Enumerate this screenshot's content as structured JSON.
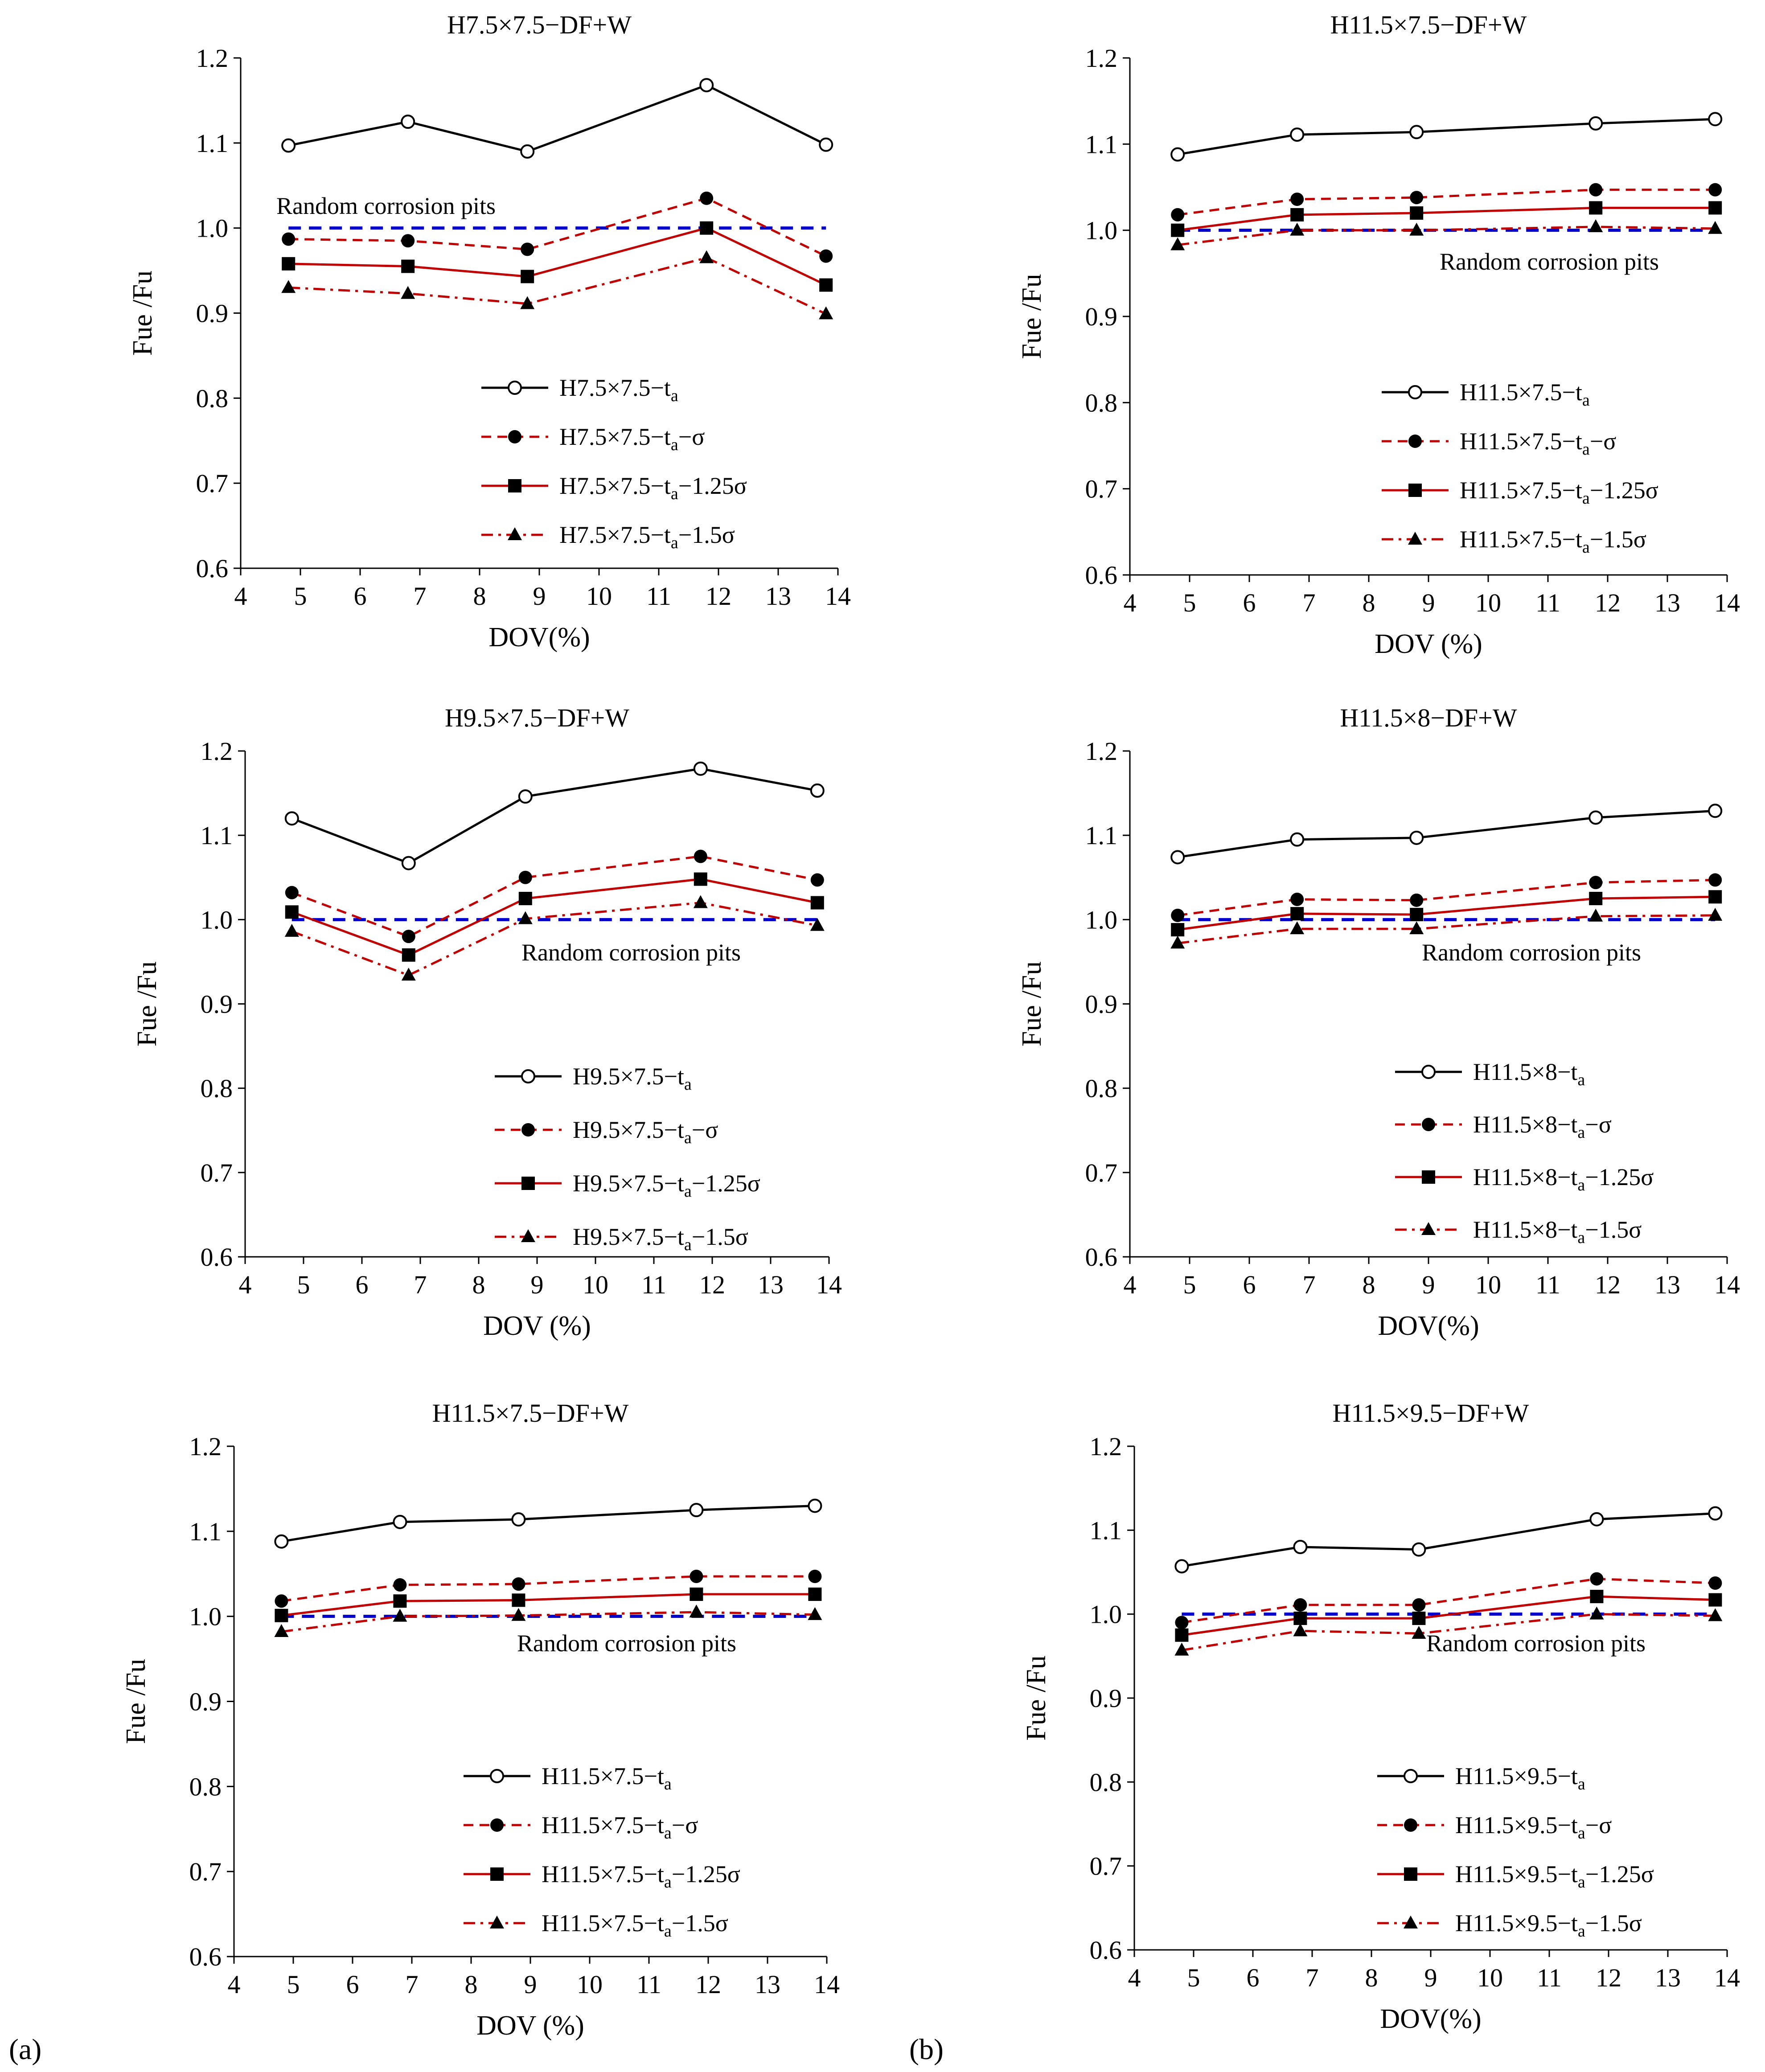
{
  "figure_labels": {
    "a": "(a)",
    "b": "(b)"
  },
  "colors": {
    "black": "#000000",
    "red": "#C00000",
    "blue": "#0000CC"
  },
  "chart_data": [
    {
      "id": "a1",
      "type": "line",
      "title": "H7.5×7.5−DF+W",
      "xlabel": "DOV(%)",
      "ylabel": "Fue /Fu",
      "xlim": [
        4,
        14
      ],
      "ylim": [
        0.6,
        1.2
      ],
      "xticks": [
        "4",
        "5",
        "6",
        "7",
        "8",
        "9",
        "10",
        "11",
        "12",
        "13",
        "14"
      ],
      "yticks": [
        "0.6",
        "0.7",
        "0.8",
        "0.9",
        "1.0",
        "1.1",
        "1.2"
      ],
      "x": [
        4.8,
        6.8,
        8.8,
        11.8,
        13.8
      ],
      "series": [
        {
          "name": "H7.5×7.5−t",
          "sub": "a",
          "suffix": "",
          "style": "solid-black-open-circle",
          "values": [
            1.097,
            1.125,
            1.09,
            1.168,
            1.098
          ]
        },
        {
          "name": "H7.5×7.5−t",
          "sub": "a",
          "suffix": "−σ",
          "style": "dashed-red-filled-circle",
          "values": [
            0.987,
            0.985,
            0.975,
            1.035,
            0.967
          ]
        },
        {
          "name": "H7.5×7.5−t",
          "sub": "a",
          "suffix": "−1.25σ",
          "style": "solid-red-square",
          "values": [
            0.958,
            0.955,
            0.943,
            1.0,
            0.933
          ]
        },
        {
          "name": "H7.5×7.5−t",
          "sub": "a",
          "suffix": "−1.5σ",
          "style": "dashdot-red-triangle",
          "values": [
            0.93,
            0.923,
            0.911,
            0.965,
            0.899
          ]
        }
      ],
      "reference_line": {
        "label": "Random corrosion pits",
        "value": 1.0
      }
    },
    {
      "id": "b1",
      "type": "line",
      "title": "H11.5×7.5−DF+W",
      "xlabel": "DOV (%)",
      "ylabel": "Fue /Fu",
      "xlim": [
        4,
        14
      ],
      "ylim": [
        0.6,
        1.2
      ],
      "xticks": [
        "4",
        "5",
        "6",
        "7",
        "8",
        "9",
        "10",
        "11",
        "12",
        "13",
        "14"
      ],
      "yticks": [
        "0.6",
        "0.7",
        "0.8",
        "0.9",
        "1.0",
        "1.1",
        "1.2"
      ],
      "x": [
        4.8,
        6.8,
        8.8,
        11.8,
        13.8
      ],
      "series": [
        {
          "name": "H11.5×7.5−t",
          "sub": "a",
          "suffix": "",
          "style": "solid-black-open-circle",
          "values": [
            1.088,
            1.111,
            1.114,
            1.124,
            1.129
          ]
        },
        {
          "name": "H11.5×7.5−t",
          "sub": "a",
          "suffix": "−σ",
          "style": "dashed-red-filled-circle",
          "values": [
            1.018,
            1.036,
            1.038,
            1.047,
            1.047
          ]
        },
        {
          "name": "H11.5×7.5−t",
          "sub": "a",
          "suffix": "−1.25σ",
          "style": "solid-red-square",
          "values": [
            1.0,
            1.018,
            1.02,
            1.026,
            1.026
          ]
        },
        {
          "name": "H11.5×7.5−t",
          "sub": "a",
          "suffix": "−1.5σ",
          "style": "dashdot-red-triangle",
          "values": [
            0.983,
            1.0,
            1.0,
            1.004,
            1.002
          ]
        }
      ],
      "reference_line": {
        "label": "Random corrosion pits",
        "value": 1.0
      }
    },
    {
      "id": "a2",
      "type": "line",
      "title": "H9.5×7.5−DF+W",
      "xlabel": "DOV (%)",
      "ylabel": "Fue /Fu",
      "xlim": [
        4,
        14
      ],
      "ylim": [
        0.6,
        1.2
      ],
      "xticks": [
        "4",
        "5",
        "6",
        "7",
        "8",
        "9",
        "10",
        "11",
        "12",
        "13",
        "14"
      ],
      "yticks": [
        "0.6",
        "0.7",
        "0.8",
        "0.9",
        "1.0",
        "1.1",
        "1.2"
      ],
      "x": [
        4.8,
        6.8,
        8.8,
        11.8,
        13.8
      ],
      "series": [
        {
          "name": "H9.5×7.5−t",
          "sub": "a",
          "suffix": "",
          "style": "solid-black-open-circle",
          "values": [
            1.12,
            1.067,
            1.146,
            1.179,
            1.153
          ]
        },
        {
          "name": "H9.5×7.5−t",
          "sub": "a",
          "suffix": "−σ",
          "style": "dashed-red-filled-circle",
          "values": [
            1.032,
            0.98,
            1.05,
            1.075,
            1.047
          ]
        },
        {
          "name": "H9.5×7.5−t",
          "sub": "a",
          "suffix": "−1.25σ",
          "style": "solid-red-square",
          "values": [
            1.009,
            0.958,
            1.025,
            1.048,
            1.02
          ]
        },
        {
          "name": "H9.5×7.5−t",
          "sub": "a",
          "suffix": "−1.5σ",
          "style": "dashdot-red-triangle",
          "values": [
            0.986,
            0.934,
            1.001,
            1.02,
            0.993
          ]
        }
      ],
      "reference_line": {
        "label": "Random corrosion pits",
        "value": 1.0
      }
    },
    {
      "id": "b2",
      "type": "line",
      "title": "H11.5×8−DF+W",
      "xlabel": "DOV(%)",
      "ylabel": "Fue /Fu",
      "xlim": [
        4,
        14
      ],
      "ylim": [
        0.6,
        1.2
      ],
      "xticks": [
        "4",
        "5",
        "6",
        "7",
        "8",
        "9",
        "10",
        "11",
        "12",
        "13",
        "14"
      ],
      "yticks": [
        "0.6",
        "0.7",
        "0.8",
        "0.9",
        "1.0",
        "1.1",
        "1.2"
      ],
      "x": [
        4.8,
        6.8,
        8.8,
        11.8,
        13.8
      ],
      "series": [
        {
          "name": "H11.5×8−t",
          "sub": "a",
          "suffix": "",
          "style": "solid-black-open-circle",
          "values": [
            1.074,
            1.095,
            1.097,
            1.121,
            1.129
          ]
        },
        {
          "name": "H11.5×8−t",
          "sub": "a",
          "suffix": "−σ",
          "style": "dashed-red-filled-circle",
          "values": [
            1.005,
            1.024,
            1.023,
            1.044,
            1.047
          ]
        },
        {
          "name": "H11.5×8−t",
          "sub": "a",
          "suffix": "−1.25σ",
          "style": "solid-red-square",
          "values": [
            0.988,
            1.007,
            1.006,
            1.025,
            1.027
          ]
        },
        {
          "name": "H11.5×8−t",
          "sub": "a",
          "suffix": "−1.5σ",
          "style": "dashdot-red-triangle",
          "values": [
            0.972,
            0.989,
            0.989,
            1.004,
            1.005
          ]
        }
      ],
      "reference_line": {
        "label": "Random corrosion pits",
        "value": 1.0
      }
    },
    {
      "id": "a3",
      "type": "line",
      "title": "H11.5×7.5−DF+W",
      "xlabel": "DOV (%)",
      "ylabel": "Fue /Fu",
      "xlim": [
        4,
        14
      ],
      "ylim": [
        0.6,
        1.2
      ],
      "xticks": [
        "4",
        "5",
        "6",
        "7",
        "8",
        "9",
        "10",
        "11",
        "12",
        "13",
        "14"
      ],
      "yticks": [
        "0.6",
        "0.7",
        "0.8",
        "0.9",
        "1.0",
        "1.1",
        "1.2"
      ],
      "x": [
        4.8,
        6.8,
        8.8,
        11.8,
        13.8
      ],
      "series": [
        {
          "name": "H11.5×7.5−t",
          "sub": "a",
          "suffix": "",
          "style": "solid-black-open-circle",
          "values": [
            1.088,
            1.111,
            1.114,
            1.125,
            1.13
          ]
        },
        {
          "name": "H11.5×7.5−t",
          "sub": "a",
          "suffix": "−σ",
          "style": "dashed-red-filled-circle",
          "values": [
            1.018,
            1.037,
            1.038,
            1.047,
            1.047
          ]
        },
        {
          "name": "H11.5×7.5−t",
          "sub": "a",
          "suffix": "−1.25σ",
          "style": "solid-red-square",
          "values": [
            1.001,
            1.018,
            1.019,
            1.026,
            1.026
          ]
        },
        {
          "name": "H11.5×7.5−t",
          "sub": "a",
          "suffix": "−1.5σ",
          "style": "dashdot-red-triangle",
          "values": [
            0.982,
            1.0,
            1.001,
            1.005,
            1.002
          ]
        }
      ],
      "reference_line": {
        "label": "Random corrosion pits",
        "value": 1.0
      }
    },
    {
      "id": "b3",
      "type": "line",
      "title": "H11.5×9.5−DF+W",
      "xlabel": "DOV(%)",
      "ylabel": "Fue /Fu",
      "xlim": [
        4,
        14
      ],
      "ylim": [
        0.6,
        1.2
      ],
      "xticks": [
        "4",
        "5",
        "6",
        "7",
        "8",
        "9",
        "10",
        "11",
        "12",
        "13",
        "14"
      ],
      "yticks": [
        "0.6",
        "0.7",
        "0.8",
        "0.9",
        "1.0",
        "1.1",
        "1.2"
      ],
      "x": [
        4.8,
        6.8,
        8.8,
        11.8,
        13.8
      ],
      "series": [
        {
          "name": "H11.5×9.5−t",
          "sub": "a",
          "suffix": "",
          "style": "solid-black-open-circle",
          "values": [
            1.057,
            1.08,
            1.077,
            1.113,
            1.12
          ]
        },
        {
          "name": "H11.5×9.5−t",
          "sub": "a",
          "suffix": "−σ",
          "style": "dashed-red-filled-circle",
          "values": [
            0.99,
            1.011,
            1.011,
            1.042,
            1.037
          ]
        },
        {
          "name": "H11.5×9.5−t",
          "sub": "a",
          "suffix": "−1.25σ",
          "style": "solid-red-square",
          "values": [
            0.975,
            0.995,
            0.995,
            1.021,
            1.017
          ]
        },
        {
          "name": "H11.5×9.5−t",
          "sub": "a",
          "suffix": "−1.5σ",
          "style": "dashdot-red-triangle",
          "values": [
            0.957,
            0.98,
            0.977,
            1.0,
            0.998
          ]
        }
      ],
      "reference_line": {
        "label": "Random corrosion pits",
        "value": 1.0
      }
    }
  ]
}
